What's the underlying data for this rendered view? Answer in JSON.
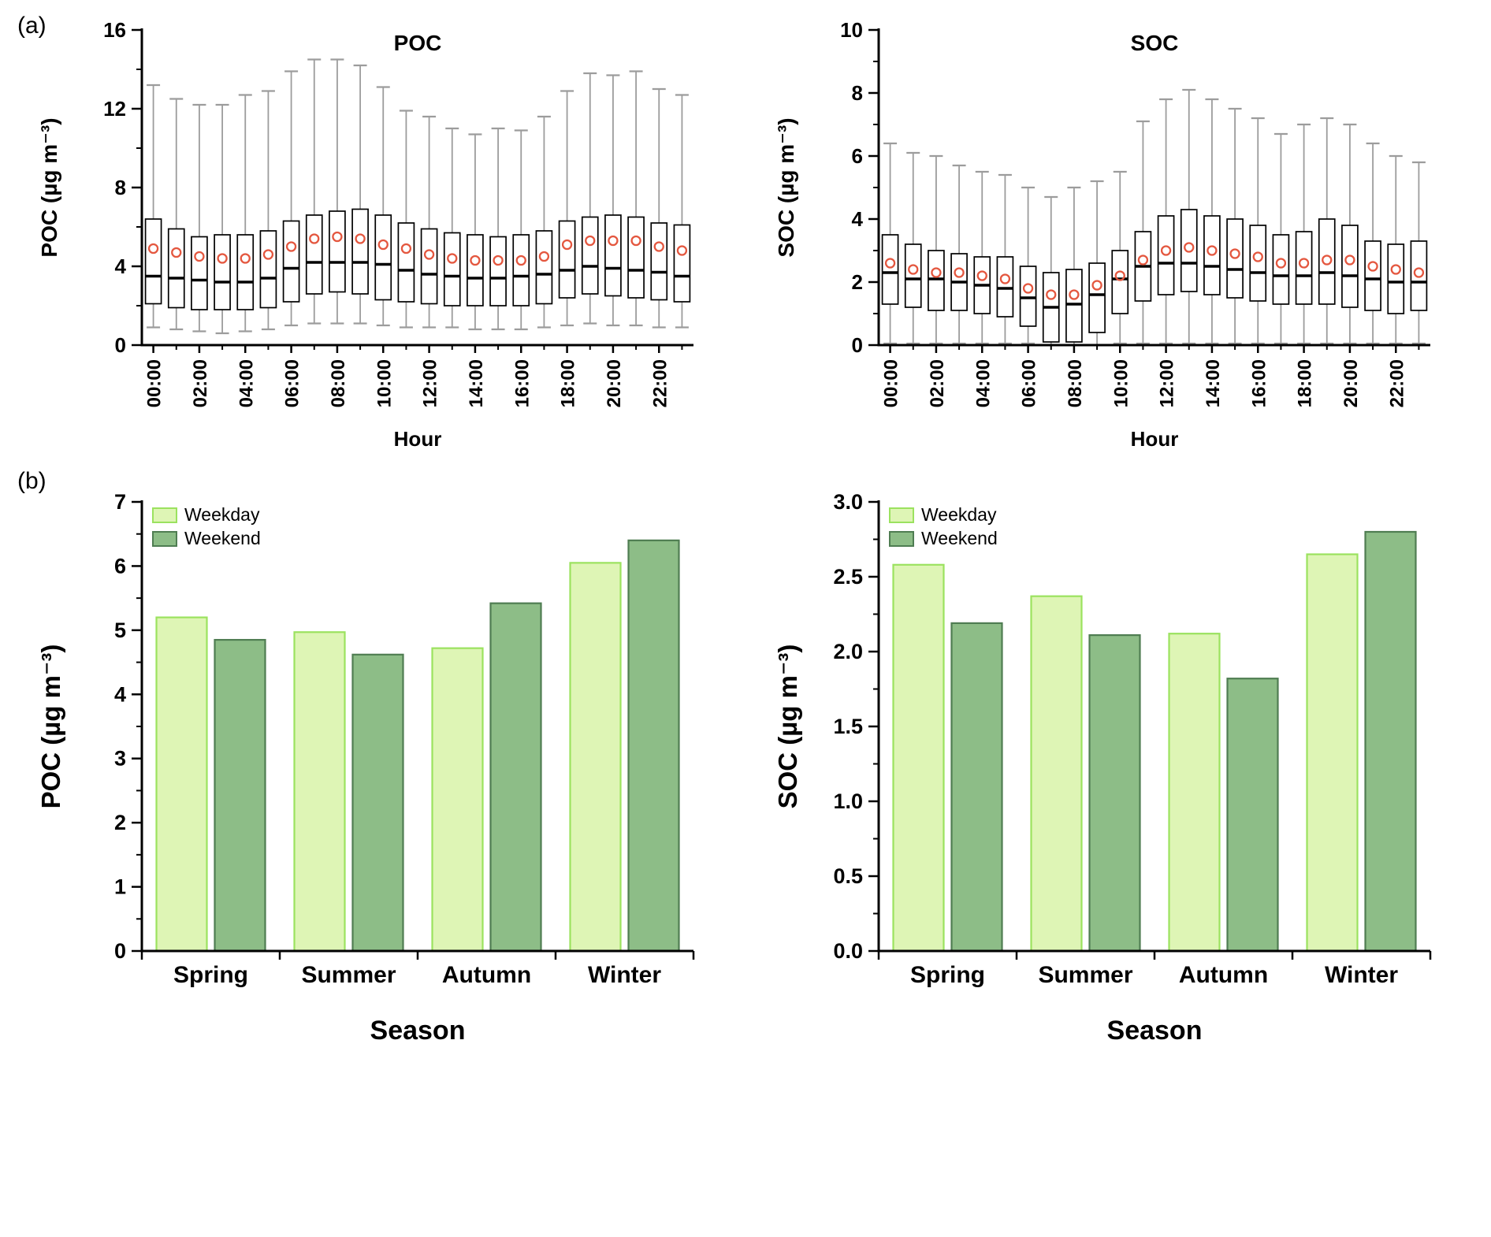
{
  "panels": {
    "a": {
      "label": "(a)"
    },
    "b": {
      "label": "(b)"
    }
  },
  "colors": {
    "weekday_fill": "#def5b5",
    "weekday_stroke": "#9be25f",
    "weekend_fill": "#8dbd87",
    "weekend_stroke": "#4f7d52",
    "whisker": "#9c9c9c",
    "box_fill": "#ffffff",
    "box_stroke": "#000000",
    "median": "#000000",
    "mean_marker": "#e4573f"
  },
  "chart_data": [
    {
      "id": "box-poc",
      "type": "box",
      "title": "POC",
      "xlabel": "Hour",
      "ylabel": "POC  (µg m⁻³)",
      "ylim": [
        0,
        16
      ],
      "ytick_step": 4,
      "ytick_decimals": 0,
      "grid": false,
      "categories": [
        "00:00",
        "01:00",
        "02:00",
        "03:00",
        "04:00",
        "05:00",
        "06:00",
        "07:00",
        "08:00",
        "09:00",
        "10:00",
        "11:00",
        "12:00",
        "13:00",
        "14:00",
        "15:00",
        "16:00",
        "17:00",
        "18:00",
        "19:00",
        "20:00",
        "21:00",
        "22:00",
        "23:00"
      ],
      "label_every": 2,
      "boxes": [
        {
          "low": 0.9,
          "q1": 2.1,
          "median": 3.5,
          "mean": 4.9,
          "q3": 6.4,
          "high": 13.2
        },
        {
          "low": 0.8,
          "q1": 1.9,
          "median": 3.4,
          "mean": 4.7,
          "q3": 5.9,
          "high": 12.5
        },
        {
          "low": 0.7,
          "q1": 1.8,
          "median": 3.3,
          "mean": 4.5,
          "q3": 5.5,
          "high": 12.2
        },
        {
          "low": 0.6,
          "q1": 1.8,
          "median": 3.2,
          "mean": 4.4,
          "q3": 5.6,
          "high": 12.2
        },
        {
          "low": 0.7,
          "q1": 1.8,
          "median": 3.2,
          "mean": 4.4,
          "q3": 5.6,
          "high": 12.7
        },
        {
          "low": 0.8,
          "q1": 1.9,
          "median": 3.4,
          "mean": 4.6,
          "q3": 5.8,
          "high": 12.9
        },
        {
          "low": 1.0,
          "q1": 2.2,
          "median": 3.9,
          "mean": 5.0,
          "q3": 6.3,
          "high": 13.9
        },
        {
          "low": 1.1,
          "q1": 2.6,
          "median": 4.2,
          "mean": 5.4,
          "q3": 6.6,
          "high": 14.5
        },
        {
          "low": 1.1,
          "q1": 2.7,
          "median": 4.2,
          "mean": 5.5,
          "q3": 6.8,
          "high": 14.5
        },
        {
          "low": 1.1,
          "q1": 2.6,
          "median": 4.2,
          "mean": 5.4,
          "q3": 6.9,
          "high": 14.2
        },
        {
          "low": 1.0,
          "q1": 2.3,
          "median": 4.1,
          "mean": 5.1,
          "q3": 6.6,
          "high": 13.1
        },
        {
          "low": 0.9,
          "q1": 2.2,
          "median": 3.8,
          "mean": 4.9,
          "q3": 6.2,
          "high": 11.9
        },
        {
          "low": 0.9,
          "q1": 2.1,
          "median": 3.6,
          "mean": 4.6,
          "q3": 5.9,
          "high": 11.6
        },
        {
          "low": 0.9,
          "q1": 2.0,
          "median": 3.5,
          "mean": 4.4,
          "q3": 5.7,
          "high": 11.0
        },
        {
          "low": 0.8,
          "q1": 2.0,
          "median": 3.4,
          "mean": 4.3,
          "q3": 5.6,
          "high": 10.7
        },
        {
          "low": 0.8,
          "q1": 2.0,
          "median": 3.4,
          "mean": 4.3,
          "q3": 5.5,
          "high": 11.0
        },
        {
          "low": 0.8,
          "q1": 2.0,
          "median": 3.5,
          "mean": 4.3,
          "q3": 5.6,
          "high": 10.9
        },
        {
          "low": 0.9,
          "q1": 2.1,
          "median": 3.6,
          "mean": 4.5,
          "q3": 5.8,
          "high": 11.6
        },
        {
          "low": 1.0,
          "q1": 2.4,
          "median": 3.8,
          "mean": 5.1,
          "q3": 6.3,
          "high": 12.9
        },
        {
          "low": 1.1,
          "q1": 2.6,
          "median": 4.0,
          "mean": 5.3,
          "q3": 6.5,
          "high": 13.8
        },
        {
          "low": 1.0,
          "q1": 2.5,
          "median": 3.9,
          "mean": 5.3,
          "q3": 6.6,
          "high": 13.7
        },
        {
          "low": 1.0,
          "q1": 2.4,
          "median": 3.8,
          "mean": 5.3,
          "q3": 6.5,
          "high": 13.9
        },
        {
          "low": 0.9,
          "q1": 2.3,
          "median": 3.7,
          "mean": 5.0,
          "q3": 6.2,
          "high": 13.0
        },
        {
          "low": 0.9,
          "q1": 2.2,
          "median": 3.5,
          "mean": 4.8,
          "q3": 6.1,
          "high": 12.7
        }
      ]
    },
    {
      "id": "box-soc",
      "type": "box",
      "title": "SOC",
      "xlabel": "Hour",
      "ylabel": "SOC  (µg m⁻³)",
      "ylim": [
        0,
        10
      ],
      "ytick_step": 2,
      "ytick_decimals": 0,
      "grid": false,
      "categories": [
        "00:00",
        "01:00",
        "02:00",
        "03:00",
        "04:00",
        "05:00",
        "06:00",
        "07:00",
        "08:00",
        "09:00",
        "10:00",
        "11:00",
        "12:00",
        "13:00",
        "14:00",
        "15:00",
        "16:00",
        "17:00",
        "18:00",
        "19:00",
        "20:00",
        "21:00",
        "22:00",
        "23:00"
      ],
      "label_every": 2,
      "boxes": [
        {
          "low": 0.05,
          "q1": 1.3,
          "median": 2.3,
          "mean": 2.6,
          "q3": 3.5,
          "high": 6.4
        },
        {
          "low": 0.05,
          "q1": 1.2,
          "median": 2.1,
          "mean": 2.4,
          "q3": 3.2,
          "high": 6.1
        },
        {
          "low": 0.05,
          "q1": 1.1,
          "median": 2.1,
          "mean": 2.3,
          "q3": 3.0,
          "high": 6.0
        },
        {
          "low": 0.05,
          "q1": 1.1,
          "median": 2.0,
          "mean": 2.3,
          "q3": 2.9,
          "high": 5.7
        },
        {
          "low": 0.05,
          "q1": 1.0,
          "median": 1.9,
          "mean": 2.2,
          "q3": 2.8,
          "high": 5.5
        },
        {
          "low": 0.05,
          "q1": 0.9,
          "median": 1.8,
          "mean": 2.1,
          "q3": 2.8,
          "high": 5.4
        },
        {
          "low": 0.05,
          "q1": 0.6,
          "median": 1.5,
          "mean": 1.8,
          "q3": 2.5,
          "high": 5.0
        },
        {
          "low": 0.0,
          "q1": 0.1,
          "median": 1.2,
          "mean": 1.6,
          "q3": 2.3,
          "high": 4.7
        },
        {
          "low": 0.0,
          "q1": 0.1,
          "median": 1.3,
          "mean": 1.6,
          "q3": 2.4,
          "high": 5.0
        },
        {
          "low": 0.0,
          "q1": 0.4,
          "median": 1.6,
          "mean": 1.9,
          "q3": 2.6,
          "high": 5.2
        },
        {
          "low": 0.05,
          "q1": 1.0,
          "median": 2.1,
          "mean": 2.2,
          "q3": 3.0,
          "high": 5.5
        },
        {
          "low": 0.05,
          "q1": 1.4,
          "median": 2.5,
          "mean": 2.7,
          "q3": 3.6,
          "high": 7.1
        },
        {
          "low": 0.05,
          "q1": 1.6,
          "median": 2.6,
          "mean": 3.0,
          "q3": 4.1,
          "high": 7.8
        },
        {
          "low": 0.05,
          "q1": 1.7,
          "median": 2.6,
          "mean": 3.1,
          "q3": 4.3,
          "high": 8.1
        },
        {
          "low": 0.05,
          "q1": 1.6,
          "median": 2.5,
          "mean": 3.0,
          "q3": 4.1,
          "high": 7.8
        },
        {
          "low": 0.05,
          "q1": 1.5,
          "median": 2.4,
          "mean": 2.9,
          "q3": 4.0,
          "high": 7.5
        },
        {
          "low": 0.05,
          "q1": 1.4,
          "median": 2.3,
          "mean": 2.8,
          "q3": 3.8,
          "high": 7.2
        },
        {
          "low": 0.05,
          "q1": 1.3,
          "median": 2.2,
          "mean": 2.6,
          "q3": 3.5,
          "high": 6.7
        },
        {
          "low": 0.05,
          "q1": 1.3,
          "median": 2.2,
          "mean": 2.6,
          "q3": 3.6,
          "high": 7.0
        },
        {
          "low": 0.05,
          "q1": 1.3,
          "median": 2.3,
          "mean": 2.7,
          "q3": 4.0,
          "high": 7.2
        },
        {
          "low": 0.05,
          "q1": 1.2,
          "median": 2.2,
          "mean": 2.7,
          "q3": 3.8,
          "high": 7.0
        },
        {
          "low": 0.05,
          "q1": 1.1,
          "median": 2.1,
          "mean": 2.5,
          "q3": 3.3,
          "high": 6.4
        },
        {
          "low": 0.05,
          "q1": 1.0,
          "median": 2.0,
          "mean": 2.4,
          "q3": 3.2,
          "high": 6.0
        },
        {
          "low": 0.05,
          "q1": 1.1,
          "median": 2.0,
          "mean": 2.3,
          "q3": 3.3,
          "high": 5.8
        }
      ]
    },
    {
      "id": "bar-poc",
      "type": "bar",
      "title": "",
      "xlabel": "Season",
      "ylabel": "POC  (µg m⁻³)",
      "ylim": [
        0,
        7
      ],
      "ytick_step": 1,
      "ytick_decimals": 0,
      "grid": false,
      "legend_position": "top-left",
      "categories": [
        "Spring",
        "Summer",
        "Autumn",
        "Winter"
      ],
      "series": [
        {
          "name": "Weekday",
          "values": [
            5.2,
            4.97,
            4.72,
            6.05
          ]
        },
        {
          "name": "Weekend",
          "values": [
            4.85,
            4.62,
            5.42,
            6.4
          ]
        }
      ]
    },
    {
      "id": "bar-soc",
      "type": "bar",
      "title": "",
      "xlabel": "Season",
      "ylabel": "SOC  (µg m⁻³)",
      "ylim": [
        0,
        3
      ],
      "ytick_step": 0.5,
      "ytick_decimals": 1,
      "grid": false,
      "legend_position": "top-left",
      "categories": [
        "Spring",
        "Summer",
        "Autumn",
        "Winter"
      ],
      "series": [
        {
          "name": "Weekday",
          "values": [
            2.58,
            2.37,
            2.12,
            2.65
          ]
        },
        {
          "name": "Weekend",
          "values": [
            2.19,
            2.11,
            1.82,
            2.8
          ]
        }
      ]
    }
  ]
}
